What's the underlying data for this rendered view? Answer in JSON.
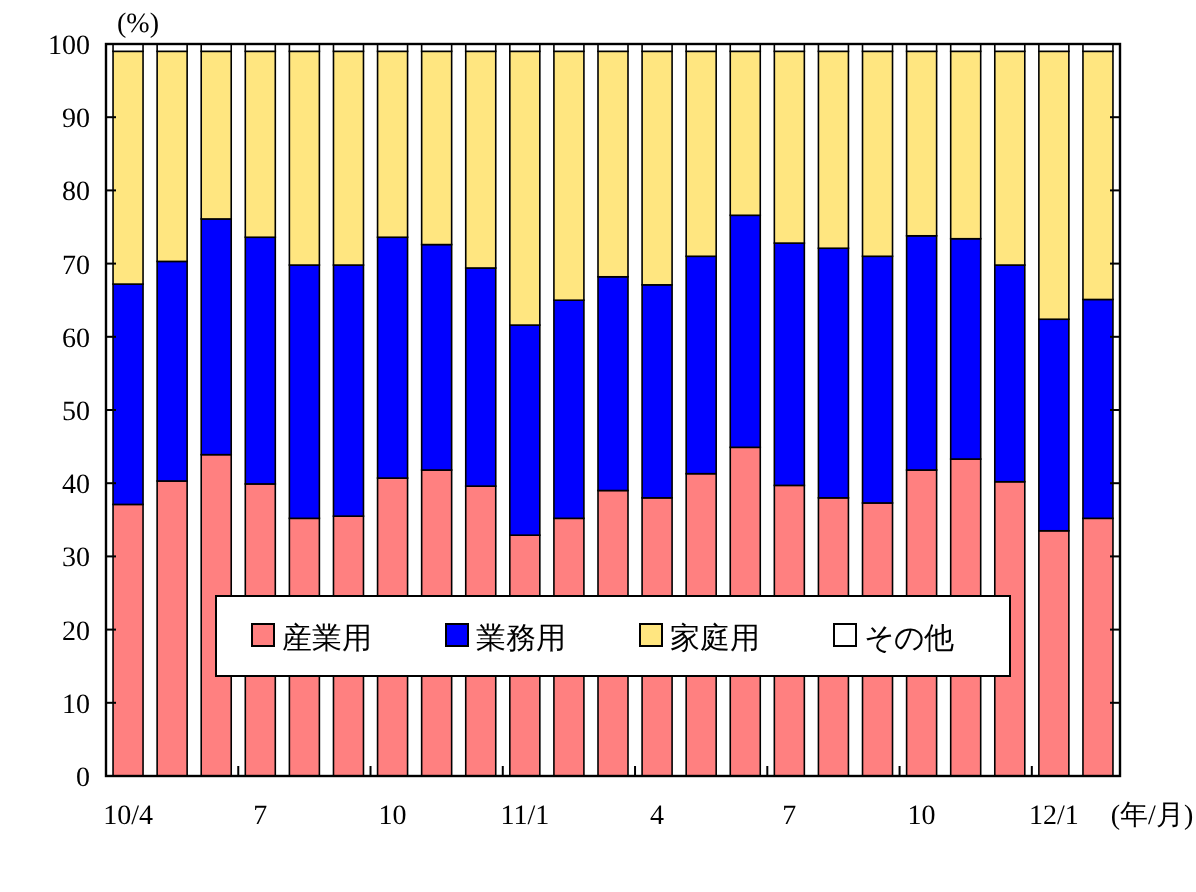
{
  "chart_data": {
    "type": "bar",
    "stacked": true,
    "ylabel": "(%)",
    "xlabel": "(年/月)",
    "categories": [
      "10/4",
      null,
      null,
      "7",
      null,
      null,
      "10",
      null,
      null,
      "11/1",
      null,
      null,
      "4",
      null,
      null,
      "7",
      null,
      null,
      "10",
      null,
      null,
      "12/1",
      null
    ],
    "ylim": [
      0,
      100
    ],
    "yticks": [
      0,
      10,
      20,
      30,
      40,
      50,
      60,
      70,
      80,
      90,
      100
    ],
    "legend": "bottom",
    "grid": false,
    "series": [
      {
        "name": "産業用",
        "color": "#ff8080",
        "values": [
          37.1,
          40.3,
          43.9,
          39.9,
          35.2,
          35.5,
          40.7,
          41.8,
          39.6,
          32.9,
          35.2,
          39.0,
          38.0,
          41.3,
          44.9,
          39.7,
          38.0,
          37.3,
          41.8,
          43.3,
          40.2,
          33.5,
          35.2
        ]
      },
      {
        "name": "業務用",
        "color": "#0000ff",
        "values": [
          30.1,
          30.0,
          32.2,
          33.7,
          34.6,
          34.3,
          32.9,
          30.8,
          29.8,
          28.7,
          29.8,
          29.2,
          29.1,
          29.7,
          31.7,
          33.1,
          34.1,
          33.7,
          32.0,
          30.1,
          29.6,
          28.9,
          29.9
        ]
      },
      {
        "name": "家庭用",
        "color": "#ffe680",
        "values": [
          31.8,
          28.7,
          22.9,
          25.4,
          29.2,
          29.2,
          25.4,
          26.4,
          29.6,
          37.4,
          34.0,
          30.8,
          31.9,
          28.0,
          22.4,
          26.2,
          26.9,
          28.0,
          25.2,
          25.6,
          29.2,
          36.6,
          33.9
        ]
      },
      {
        "name": "その他",
        "color": "#ffffff",
        "values": [
          1,
          1,
          1,
          1,
          1,
          1,
          1,
          1,
          1,
          1,
          1,
          1,
          1,
          1,
          1,
          1,
          1,
          1,
          1,
          1,
          1,
          1,
          1
        ]
      }
    ]
  }
}
